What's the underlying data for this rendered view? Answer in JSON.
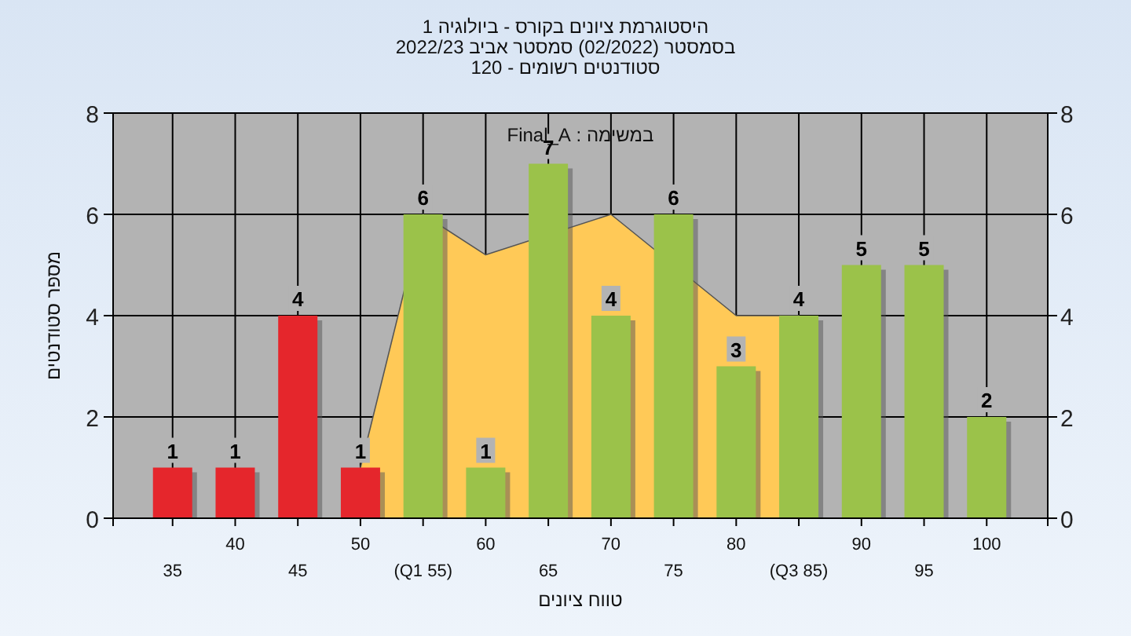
{
  "chart_data": {
    "type": "bar",
    "title": "היסטוגרמת ציונים בקורס - ביולוגיה 1",
    "subtitle": [
      "בסמסטר (02/2022) סמסטר אביב 2022/23",
      "סטודנטים רשומים - 120"
    ],
    "xlabel": "טווח ציונים",
    "ylabel": "מספר סטודנטים",
    "annotations": [
      "במשימה : Final_A"
    ],
    "categories": [
      "35",
      "40",
      "45",
      "50",
      "(Q1 55)",
      "60",
      "65",
      "70",
      "75",
      "80",
      "(Q3 85)",
      "90",
      "95",
      "100"
    ],
    "series": [
      {
        "type": "area",
        "color": "#ffc957",
        "values": [
          null,
          null,
          null,
          1,
          6,
          5.2,
          null,
          6,
          null,
          4,
          4,
          null,
          null,
          null
        ]
      },
      {
        "data_labels": true,
        "colors": [
          "#e5262c",
          "#e5262c",
          "#e5262c",
          "#e5262c",
          "#9bc24a",
          "#9bc24a",
          "#9bc24a",
          "#9bc24a",
          "#9bc24a",
          "#9bc24a",
          "#9bc24a",
          "#9bc24a",
          "#9bc24a",
          "#9bc24a"
        ],
        "values": [
          1,
          1,
          4,
          1,
          6,
          1,
          7,
          4,
          6,
          3,
          4,
          5,
          5,
          2
        ]
      }
    ],
    "ylim": [
      0,
      8
    ],
    "yticks": [
      0,
      2,
      4,
      6,
      8
    ],
    "y2lim": [
      0,
      8
    ],
    "y2ticks": [
      0,
      2,
      4,
      6,
      8
    ],
    "grid": true
  }
}
